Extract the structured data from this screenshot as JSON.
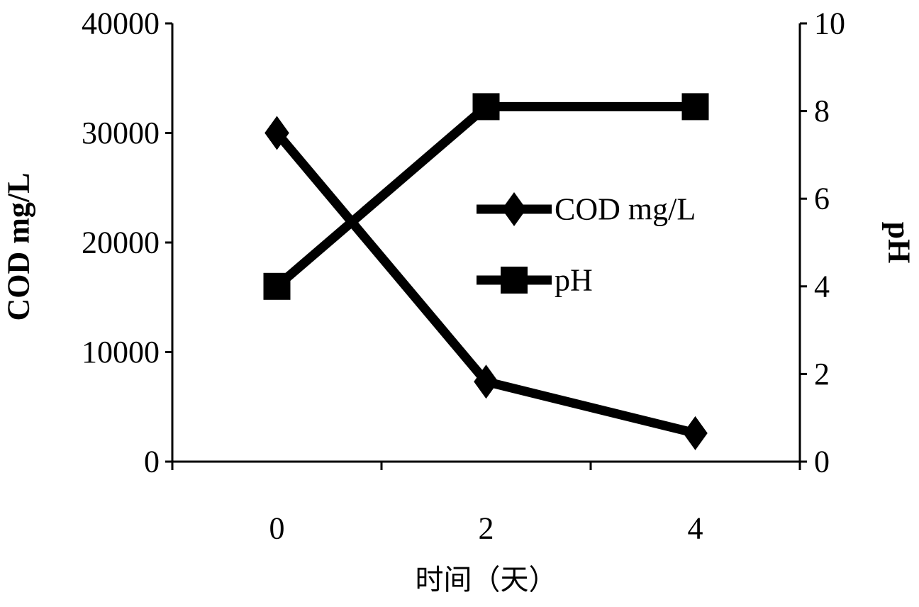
{
  "chart_data": {
    "type": "line",
    "title": "",
    "x": [
      0,
      2,
      4
    ],
    "xlabel": "时间（天）",
    "x_ticks": [
      0,
      2,
      4
    ],
    "x_range": [
      -1,
      5
    ],
    "ylabel": "COD mg/L",
    "ylim": [
      0,
      40000
    ],
    "y_ticks": [
      0,
      10000,
      20000,
      30000,
      40000
    ],
    "y2label": "pH",
    "y2lim": [
      0,
      10
    ],
    "y2_ticks": [
      0,
      2,
      4,
      6,
      8,
      10
    ],
    "grid": false,
    "legend_position": "center-right",
    "series": [
      {
        "name": "COD mg/L",
        "axis": "left",
        "marker": "diamond",
        "color": "#000000",
        "values": [
          30000,
          7300,
          2600
        ]
      },
      {
        "name": "pH",
        "axis": "right",
        "marker": "square",
        "color": "#000000",
        "values": [
          4,
          8.1,
          8.1
        ]
      }
    ]
  }
}
